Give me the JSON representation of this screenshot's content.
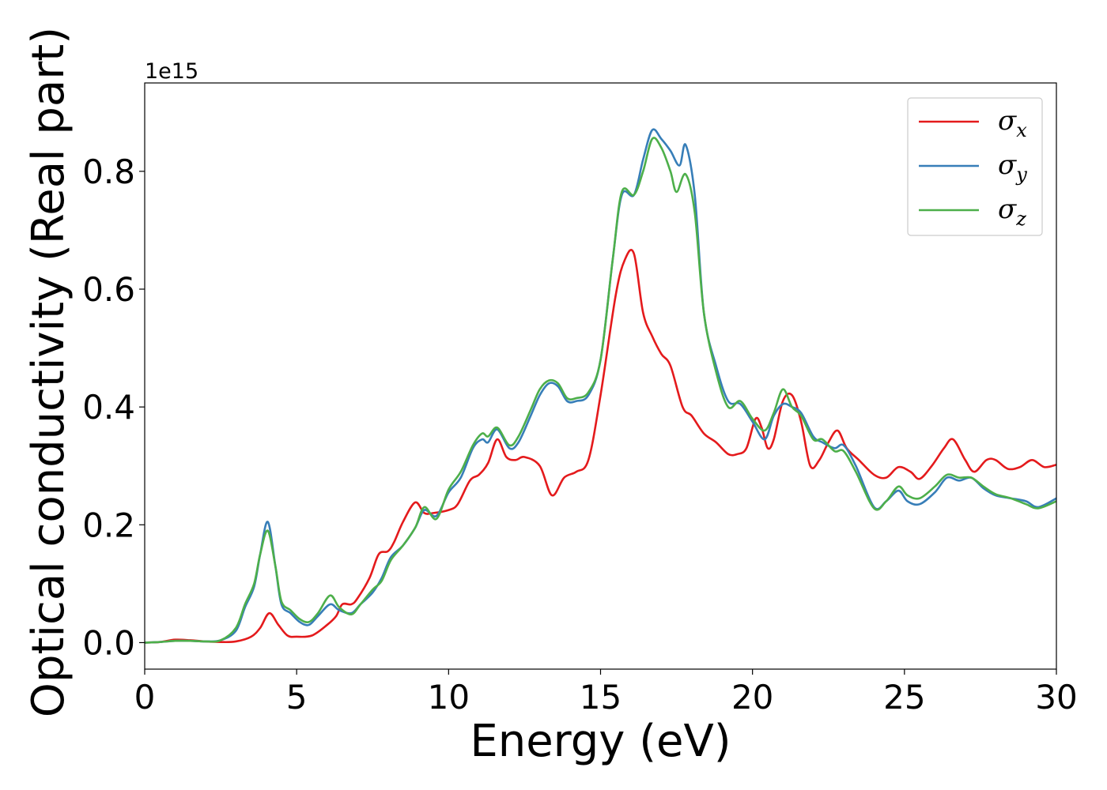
{
  "chart_data": {
    "type": "line",
    "title": "",
    "xlabel": "Energy (eV)",
    "ylabel": "Optical conductivity (Real part)",
    "y_offset_label": "1e15",
    "xlim": [
      0,
      30
    ],
    "ylim": [
      -0.045,
      0.95
    ],
    "x_ticks": [
      0,
      5,
      10,
      15,
      20,
      25,
      30
    ],
    "x_tick_labels": [
      "0",
      "5",
      "10",
      "15",
      "20",
      "25",
      "30"
    ],
    "y_ticks": [
      0.0,
      0.2,
      0.4,
      0.6,
      0.8
    ],
    "y_tick_labels": [
      "0.0",
      "0.2",
      "0.4",
      "0.6",
      "0.8"
    ],
    "grid": false,
    "legend_position": "top-right",
    "series": [
      {
        "name": "σ_x",
        "label_main": "σ",
        "label_sub": "x",
        "color": "#e41a1c",
        "points": [
          [
            0,
            0
          ],
          [
            0.5,
            0.001
          ],
          [
            1.0,
            0.005
          ],
          [
            1.5,
            0.004
          ],
          [
            2.0,
            0.002
          ],
          [
            2.5,
            0.001
          ],
          [
            3.0,
            0.002
          ],
          [
            3.5,
            0.01
          ],
          [
            3.8,
            0.025
          ],
          [
            4.1,
            0.05
          ],
          [
            4.4,
            0.03
          ],
          [
            4.7,
            0.012
          ],
          [
            5.0,
            0.01
          ],
          [
            5.5,
            0.012
          ],
          [
            6.0,
            0.03
          ],
          [
            6.3,
            0.045
          ],
          [
            6.5,
            0.065
          ],
          [
            6.8,
            0.065
          ],
          [
            7.0,
            0.075
          ],
          [
            7.4,
            0.11
          ],
          [
            7.7,
            0.15
          ],
          [
            8.0,
            0.155
          ],
          [
            8.2,
            0.17
          ],
          [
            8.5,
            0.205
          ],
          [
            8.9,
            0.238
          ],
          [
            9.2,
            0.22
          ],
          [
            9.5,
            0.22
          ],
          [
            10.0,
            0.225
          ],
          [
            10.3,
            0.235
          ],
          [
            10.7,
            0.275
          ],
          [
            11.0,
            0.285
          ],
          [
            11.3,
            0.305
          ],
          [
            11.6,
            0.345
          ],
          [
            11.9,
            0.315
          ],
          [
            12.2,
            0.31
          ],
          [
            12.5,
            0.315
          ],
          [
            13.0,
            0.3
          ],
          [
            13.4,
            0.25
          ],
          [
            13.8,
            0.28
          ],
          [
            14.2,
            0.29
          ],
          [
            14.6,
            0.31
          ],
          [
            15.0,
            0.42
          ],
          [
            15.5,
            0.59
          ],
          [
            15.8,
            0.65
          ],
          [
            16.1,
            0.66
          ],
          [
            16.4,
            0.56
          ],
          [
            16.7,
            0.52
          ],
          [
            17.0,
            0.49
          ],
          [
            17.3,
            0.47
          ],
          [
            17.7,
            0.4
          ],
          [
            18.0,
            0.385
          ],
          [
            18.4,
            0.355
          ],
          [
            18.8,
            0.34
          ],
          [
            19.2,
            0.32
          ],
          [
            19.5,
            0.32
          ],
          [
            19.8,
            0.33
          ],
          [
            20.1,
            0.38
          ],
          [
            20.3,
            0.365
          ],
          [
            20.5,
            0.33
          ],
          [
            20.7,
            0.345
          ],
          [
            21.0,
            0.41
          ],
          [
            21.3,
            0.42
          ],
          [
            21.6,
            0.375
          ],
          [
            21.9,
            0.3
          ],
          [
            22.2,
            0.31
          ],
          [
            22.5,
            0.34
          ],
          [
            22.8,
            0.36
          ],
          [
            23.1,
            0.33
          ],
          [
            23.5,
            0.31
          ],
          [
            24.0,
            0.285
          ],
          [
            24.4,
            0.28
          ],
          [
            24.8,
            0.298
          ],
          [
            25.2,
            0.29
          ],
          [
            25.5,
            0.278
          ],
          [
            25.9,
            0.3
          ],
          [
            26.3,
            0.33
          ],
          [
            26.6,
            0.345
          ],
          [
            27.0,
            0.31
          ],
          [
            27.3,
            0.29
          ],
          [
            27.7,
            0.31
          ],
          [
            28.0,
            0.31
          ],
          [
            28.4,
            0.295
          ],
          [
            28.8,
            0.298
          ],
          [
            29.2,
            0.31
          ],
          [
            29.6,
            0.298
          ],
          [
            30.0,
            0.302
          ]
        ]
      },
      {
        "name": "σ_y",
        "label_main": "σ",
        "label_sub": "y",
        "color": "#377eb8",
        "points": [
          [
            0,
            0
          ],
          [
            0.5,
            0.001
          ],
          [
            1.0,
            0.003
          ],
          [
            1.5,
            0.003
          ],
          [
            2.0,
            0.002
          ],
          [
            2.5,
            0.004
          ],
          [
            3.0,
            0.02
          ],
          [
            3.3,
            0.06
          ],
          [
            3.6,
            0.095
          ],
          [
            3.8,
            0.15
          ],
          [
            4.05,
            0.205
          ],
          [
            4.3,
            0.13
          ],
          [
            4.5,
            0.065
          ],
          [
            4.8,
            0.05
          ],
          [
            5.1,
            0.035
          ],
          [
            5.4,
            0.03
          ],
          [
            5.7,
            0.045
          ],
          [
            6.1,
            0.065
          ],
          [
            6.4,
            0.055
          ],
          [
            6.8,
            0.05
          ],
          [
            7.1,
            0.065
          ],
          [
            7.5,
            0.085
          ],
          [
            7.8,
            0.11
          ],
          [
            8.1,
            0.145
          ],
          [
            8.5,
            0.165
          ],
          [
            8.9,
            0.195
          ],
          [
            9.2,
            0.225
          ],
          [
            9.6,
            0.215
          ],
          [
            10.0,
            0.255
          ],
          [
            10.4,
            0.28
          ],
          [
            10.8,
            0.33
          ],
          [
            11.1,
            0.345
          ],
          [
            11.3,
            0.34
          ],
          [
            11.6,
            0.362
          ],
          [
            12.0,
            0.33
          ],
          [
            12.3,
            0.34
          ],
          [
            12.7,
            0.385
          ],
          [
            13.0,
            0.42
          ],
          [
            13.3,
            0.44
          ],
          [
            13.6,
            0.435
          ],
          [
            13.9,
            0.41
          ],
          [
            14.2,
            0.41
          ],
          [
            14.6,
            0.42
          ],
          [
            15.0,
            0.48
          ],
          [
            15.4,
            0.65
          ],
          [
            15.7,
            0.76
          ],
          [
            16.1,
            0.76
          ],
          [
            16.4,
            0.82
          ],
          [
            16.7,
            0.87
          ],
          [
            17.0,
            0.855
          ],
          [
            17.3,
            0.835
          ],
          [
            17.6,
            0.81
          ],
          [
            17.8,
            0.845
          ],
          [
            18.1,
            0.76
          ],
          [
            18.4,
            0.56
          ],
          [
            18.8,
            0.47
          ],
          [
            19.2,
            0.41
          ],
          [
            19.6,
            0.405
          ],
          [
            20.0,
            0.375
          ],
          [
            20.4,
            0.345
          ],
          [
            20.7,
            0.385
          ],
          [
            21.0,
            0.405
          ],
          [
            21.3,
            0.4
          ],
          [
            21.6,
            0.39
          ],
          [
            22.0,
            0.35
          ],
          [
            22.3,
            0.34
          ],
          [
            22.7,
            0.33
          ],
          [
            23.0,
            0.335
          ],
          [
            23.4,
            0.3
          ],
          [
            24.0,
            0.23
          ],
          [
            24.4,
            0.24
          ],
          [
            24.8,
            0.258
          ],
          [
            25.1,
            0.24
          ],
          [
            25.5,
            0.235
          ],
          [
            26.0,
            0.255
          ],
          [
            26.4,
            0.28
          ],
          [
            26.8,
            0.275
          ],
          [
            27.2,
            0.28
          ],
          [
            27.6,
            0.262
          ],
          [
            28.0,
            0.25
          ],
          [
            28.5,
            0.245
          ],
          [
            29.0,
            0.24
          ],
          [
            29.4,
            0.23
          ],
          [
            30.0,
            0.245
          ]
        ]
      },
      {
        "name": "σ_z",
        "label_main": "σ",
        "label_sub": "z",
        "color": "#4daf4a",
        "points": [
          [
            0,
            0
          ],
          [
            0.5,
            0.001
          ],
          [
            1.0,
            0.003
          ],
          [
            1.5,
            0.003
          ],
          [
            2.0,
            0.002
          ],
          [
            2.5,
            0.004
          ],
          [
            3.0,
            0.025
          ],
          [
            3.3,
            0.065
          ],
          [
            3.6,
            0.1
          ],
          [
            3.8,
            0.15
          ],
          [
            4.05,
            0.19
          ],
          [
            4.3,
            0.13
          ],
          [
            4.5,
            0.07
          ],
          [
            4.8,
            0.055
          ],
          [
            5.1,
            0.04
          ],
          [
            5.4,
            0.035
          ],
          [
            5.7,
            0.05
          ],
          [
            6.1,
            0.08
          ],
          [
            6.4,
            0.06
          ],
          [
            6.8,
            0.048
          ],
          [
            7.1,
            0.065
          ],
          [
            7.5,
            0.09
          ],
          [
            7.8,
            0.105
          ],
          [
            8.1,
            0.14
          ],
          [
            8.5,
            0.165
          ],
          [
            8.9,
            0.195
          ],
          [
            9.2,
            0.23
          ],
          [
            9.6,
            0.21
          ],
          [
            10.0,
            0.26
          ],
          [
            10.4,
            0.29
          ],
          [
            10.8,
            0.335
          ],
          [
            11.1,
            0.355
          ],
          [
            11.3,
            0.35
          ],
          [
            11.6,
            0.365
          ],
          [
            12.0,
            0.335
          ],
          [
            12.3,
            0.35
          ],
          [
            12.7,
            0.395
          ],
          [
            13.0,
            0.43
          ],
          [
            13.3,
            0.445
          ],
          [
            13.6,
            0.44
          ],
          [
            13.9,
            0.415
          ],
          [
            14.2,
            0.415
          ],
          [
            14.6,
            0.425
          ],
          [
            15.0,
            0.48
          ],
          [
            15.4,
            0.65
          ],
          [
            15.7,
            0.765
          ],
          [
            16.1,
            0.76
          ],
          [
            16.4,
            0.8
          ],
          [
            16.7,
            0.855
          ],
          [
            17.0,
            0.84
          ],
          [
            17.3,
            0.8
          ],
          [
            17.5,
            0.765
          ],
          [
            17.8,
            0.795
          ],
          [
            18.1,
            0.73
          ],
          [
            18.4,
            0.56
          ],
          [
            18.8,
            0.46
          ],
          [
            19.2,
            0.4
          ],
          [
            19.6,
            0.41
          ],
          [
            20.0,
            0.38
          ],
          [
            20.4,
            0.36
          ],
          [
            20.7,
            0.39
          ],
          [
            21.0,
            0.43
          ],
          [
            21.3,
            0.4
          ],
          [
            21.6,
            0.385
          ],
          [
            22.0,
            0.345
          ],
          [
            22.3,
            0.345
          ],
          [
            22.7,
            0.325
          ],
          [
            23.0,
            0.325
          ],
          [
            23.4,
            0.29
          ],
          [
            24.0,
            0.228
          ],
          [
            24.4,
            0.24
          ],
          [
            24.8,
            0.265
          ],
          [
            25.1,
            0.25
          ],
          [
            25.5,
            0.245
          ],
          [
            26.0,
            0.265
          ],
          [
            26.4,
            0.285
          ],
          [
            26.8,
            0.28
          ],
          [
            27.2,
            0.28
          ],
          [
            27.6,
            0.265
          ],
          [
            28.0,
            0.252
          ],
          [
            28.5,
            0.245
          ],
          [
            29.0,
            0.235
          ],
          [
            29.4,
            0.228
          ],
          [
            30.0,
            0.24
          ]
        ]
      }
    ]
  }
}
